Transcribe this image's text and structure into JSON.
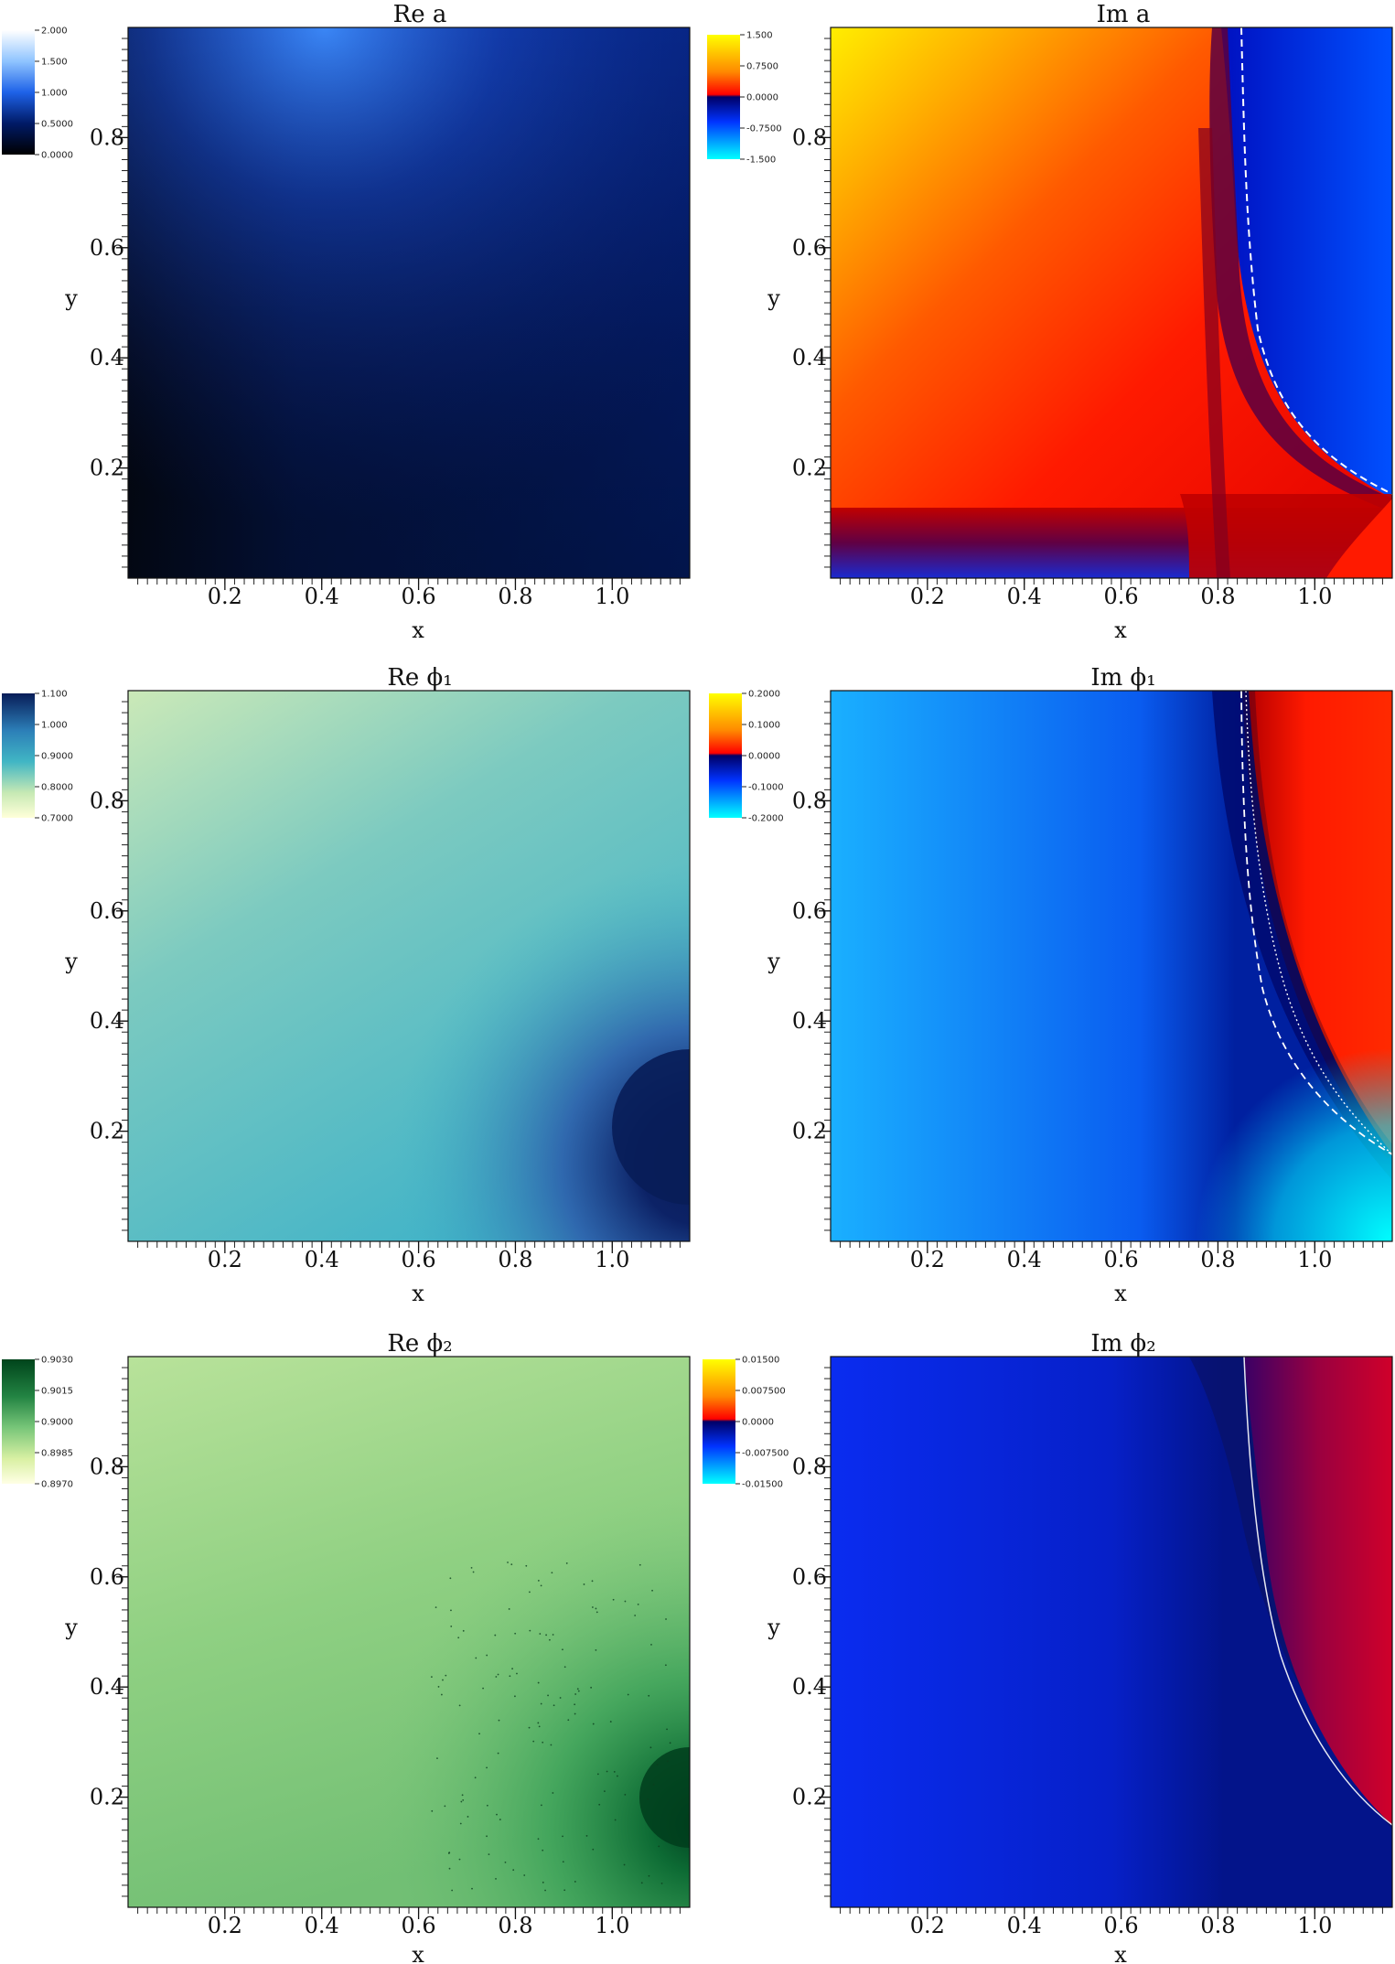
{
  "chart_data": [
    {
      "type": "heatmap",
      "title": "Re a",
      "xlabel": "x",
      "ylabel": "y",
      "xticks": [
        "0.2",
        "0.4",
        "0.6",
        "0.8",
        "1.0"
      ],
      "yticks": [
        "0.2",
        "0.4",
        "0.6",
        "0.8"
      ],
      "xlim": [
        0,
        1.16
      ],
      "ylim": [
        0,
        1.0
      ],
      "colorbar": {
        "ticks": [
          "2.000",
          "1.500",
          "1.000",
          "0.5000",
          "0.0000"
        ],
        "range": [
          0,
          2
        ],
        "colormap": "black-blue-white"
      },
      "colors": {
        "cmap": [
          "#000000",
          "#001a66",
          "#1e62e8",
          "#8fc4ff",
          "#ffffff"
        ]
      }
    },
    {
      "type": "heatmap",
      "title": "Im a",
      "xlabel": "x",
      "ylabel": "y",
      "xticks": [
        "0.2",
        "0.4",
        "0.6",
        "0.8",
        "1.0"
      ],
      "yticks": [
        "0.2",
        "0.4",
        "0.6",
        "0.8"
      ],
      "xlim": [
        0,
        1.16
      ],
      "ylim": [
        0,
        1.0
      ],
      "colorbar": {
        "ticks": [
          "1.500",
          "0.7500",
          "0.0000",
          "-0.7500",
          "-1.500"
        ],
        "range": [
          -1.5,
          1.5
        ],
        "colormap": "diverging-cyan-blue-red-yellow"
      },
      "colors": {
        "cmap": [
          "#00ffff",
          "#0033ff",
          "#000066",
          "#ff1a00",
          "#ffff00"
        ]
      },
      "contour": "zero-level dashed white line"
    },
    {
      "type": "heatmap",
      "title": "Re ϕ₁",
      "xlabel": "x",
      "ylabel": "y",
      "xticks": [
        "0.2",
        "0.4",
        "0.6",
        "0.8",
        "1.0"
      ],
      "yticks": [
        "0.2",
        "0.4",
        "0.6",
        "0.8"
      ],
      "xlim": [
        0,
        1.16
      ],
      "ylim": [
        0,
        1.0
      ],
      "colorbar": {
        "ticks": [
          "1.100",
          "1.000",
          "0.9000",
          "0.8000",
          "0.7000"
        ],
        "range": [
          0.7,
          1.1
        ],
        "colormap": "yellow-green-blue"
      },
      "colors": {
        "cmap": [
          "#ffffd9",
          "#b5e2b6",
          "#41b6c4",
          "#2c3f97",
          "#081d58"
        ]
      }
    },
    {
      "type": "heatmap",
      "title": "Im ϕ₁",
      "xlabel": "x",
      "ylabel": "y",
      "xticks": [
        "0.2",
        "0.4",
        "0.6",
        "0.8",
        "1.0"
      ],
      "yticks": [
        "0.2",
        "0.4",
        "0.6",
        "0.8"
      ],
      "xlim": [
        0,
        1.16
      ],
      "ylim": [
        0,
        1.0
      ],
      "colorbar": {
        "ticks": [
          "0.2000",
          "0.1000",
          "0.0000",
          "-0.1000",
          "-0.2000"
        ],
        "range": [
          -0.2,
          0.2
        ],
        "colormap": "diverging-cyan-blue-red-yellow"
      },
      "colors": {
        "cmap": [
          "#00ffff",
          "#0033ff",
          "#000066",
          "#ff1a00",
          "#ffff00"
        ]
      },
      "contour": "dashed and dotted white lines near sign change"
    },
    {
      "type": "heatmap",
      "title": "Re ϕ₂",
      "xlabel": "x",
      "ylabel": "y",
      "xticks": [
        "0.2",
        "0.4",
        "0.6",
        "0.8",
        "1.0"
      ],
      "yticks": [
        "0.2",
        "0.4",
        "0.6",
        "0.8"
      ],
      "xlim": [
        0,
        1.16
      ],
      "ylim": [
        0,
        1.0
      ],
      "colorbar": {
        "ticks": [
          "0.9030",
          "0.9015",
          "0.9000",
          "0.8985",
          "0.8970"
        ],
        "range": [
          0.897,
          0.903
        ],
        "colormap": "yellow-green"
      },
      "colors": {
        "cmap": [
          "#ffffe5",
          "#c2e699",
          "#78c679",
          "#238443",
          "#00441b"
        ]
      }
    },
    {
      "type": "heatmap",
      "title": "Im ϕ₂",
      "xlabel": "x",
      "ylabel": "y",
      "xticks": [
        "0.2",
        "0.4",
        "0.6",
        "0.8",
        "1.0"
      ],
      "yticks": [
        "0.2",
        "0.4",
        "0.6",
        "0.8"
      ],
      "xlim": [
        0,
        1.16
      ],
      "ylim": [
        0,
        1.0
      ],
      "colorbar": {
        "ticks": [
          "0.01500",
          "0.007500",
          "0.0000",
          "-0.007500",
          "-0.01500"
        ],
        "range": [
          -0.015,
          0.015
        ],
        "colormap": "diverging-cyan-blue-red-yellow"
      },
      "colors": {
        "cmap": [
          "#00ffff",
          "#0033ff",
          "#000066",
          "#ff1a00",
          "#ffff00"
        ]
      },
      "contour": "thin white line at zero level"
    }
  ]
}
